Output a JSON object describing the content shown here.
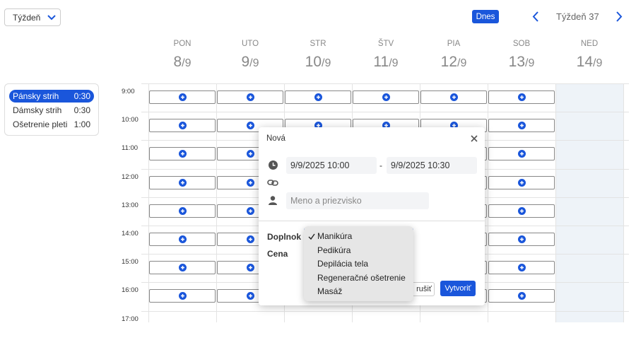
{
  "toolbar": {
    "view": "Týždeň",
    "today": "Dnes",
    "week": "Týždeň 37"
  },
  "days": [
    {
      "name": "PON",
      "day": "8",
      "month": "/9"
    },
    {
      "name": "UTO",
      "day": "9",
      "month": "/9"
    },
    {
      "name": "STR",
      "day": "10",
      "month": "/9"
    },
    {
      "name": "ŠTV",
      "day": "11",
      "month": "/9"
    },
    {
      "name": "PIA",
      "day": "12",
      "month": "/9"
    },
    {
      "name": "SOB",
      "day": "13",
      "month": "/9"
    },
    {
      "name": "NED",
      "day": "14",
      "month": "/9"
    }
  ],
  "services": [
    {
      "name": "Pánsky strih",
      "duration": "0:30"
    },
    {
      "name": "Dámsky strih",
      "duration": "0:30"
    },
    {
      "name": "Ošetrenie pleti",
      "duration": "1:00"
    }
  ],
  "times": [
    "9:00",
    "10:00",
    "11:00",
    "12:00",
    "13:00",
    "14:00",
    "15:00",
    "16:00",
    "17:00"
  ],
  "modal": {
    "title": "Nová",
    "start": "9/9/2025  10:00",
    "separator": "-",
    "end": "9/9/2025  10:30",
    "name_placeholder": "Meno a priezvisko",
    "addon_label": "Doplnok",
    "price_label": "Cena",
    "cancel": "rušiť",
    "create": "Vytvoriť"
  },
  "dropdown": {
    "options": [
      "Manikúra",
      "Pedikúra",
      "Depilácia tela",
      "Regeneračné ošetrenie",
      "Masáž"
    ]
  }
}
